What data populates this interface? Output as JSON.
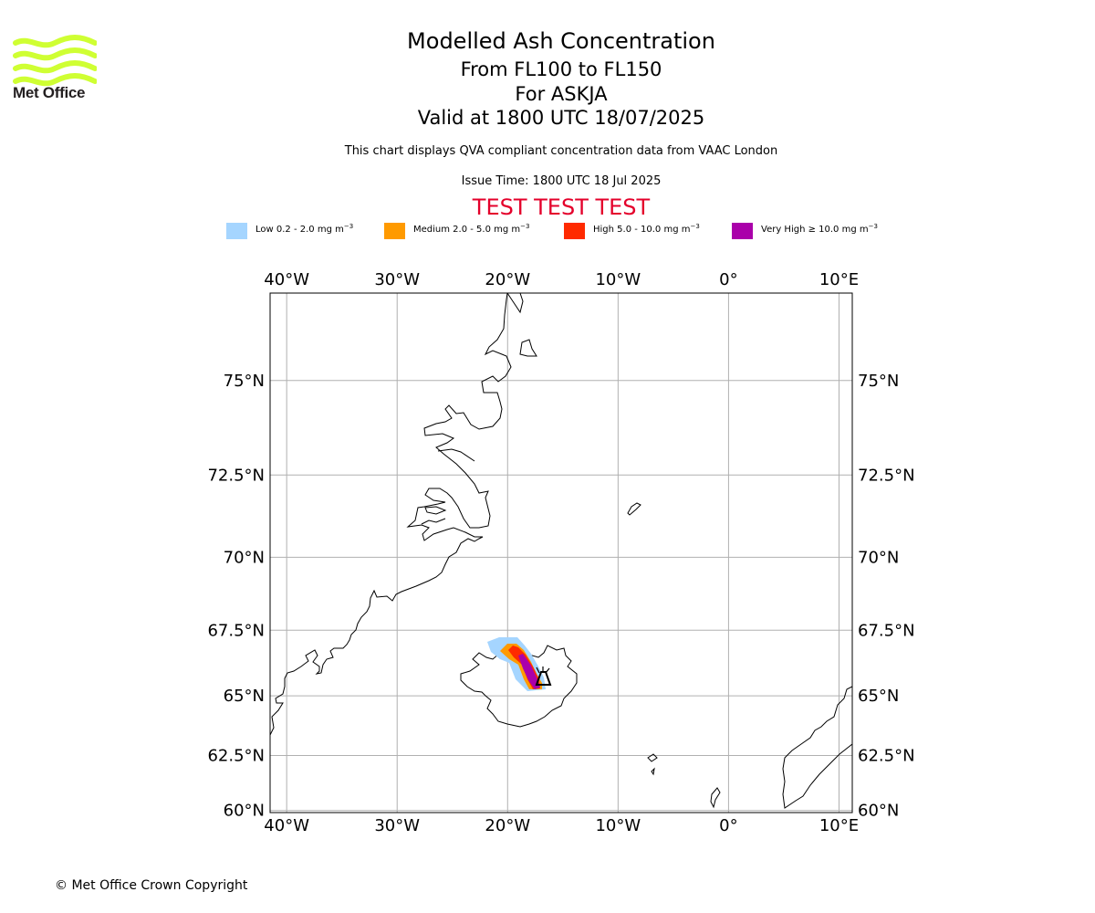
{
  "logo": {
    "text": "Met Office",
    "colors": {
      "waves": "#cfff33",
      "text": "#231f20"
    }
  },
  "titles": {
    "main": "Modelled Ash Concentration",
    "levels": "From FL100 to FL150",
    "volcano": "For ASKJA",
    "valid": "Valid at 1800 UTC 18/07/2025",
    "description": "This chart displays QVA compliant concentration data from VAAC London",
    "issue": "Issue Time: 1800 UTC 18 Jul 2025",
    "test_banner": "TEST TEST TEST"
  },
  "legend": [
    {
      "prefix": "Low 0.2 - 2.0 mg m",
      "exp": "−3",
      "color": "#a5d5ff"
    },
    {
      "prefix": "Medium 2.0 - 5.0 mg m",
      "exp": "−3",
      "color": "#ff9a00"
    },
    {
      "prefix": "High 5.0 - 10.0 mg m",
      "exp": "−3",
      "color": "#ff2a00"
    },
    {
      "prefix": "Very High  ≥  10.0 mg m",
      "exp": "−3",
      "color": "#aa00aa"
    }
  ],
  "map": {
    "projection": "lat-lon",
    "lon_range": [
      -41.5,
      11.2
    ],
    "lat_range": [
      59.9,
      77.0
    ],
    "lon_ticks": [
      -40,
      -30,
      -20,
      -10,
      0,
      10
    ],
    "lon_tick_labels": [
      "40°W",
      "30°W",
      "20°W",
      "10°W",
      "0°",
      "10°E"
    ],
    "lat_ticks": [
      60,
      62.5,
      65,
      67.5,
      70,
      72.5,
      75
    ],
    "lat_tick_labels": [
      "60°N",
      "62.5°N",
      "65°N",
      "67.5°N",
      "70°N",
      "72.5°N",
      "75°N"
    ],
    "gridlines": true,
    "volcano": {
      "name": "ASKJA",
      "lon": -16.75,
      "lat": 65.03
    }
  },
  "copyright": "© Met Office Crown Copyright"
}
